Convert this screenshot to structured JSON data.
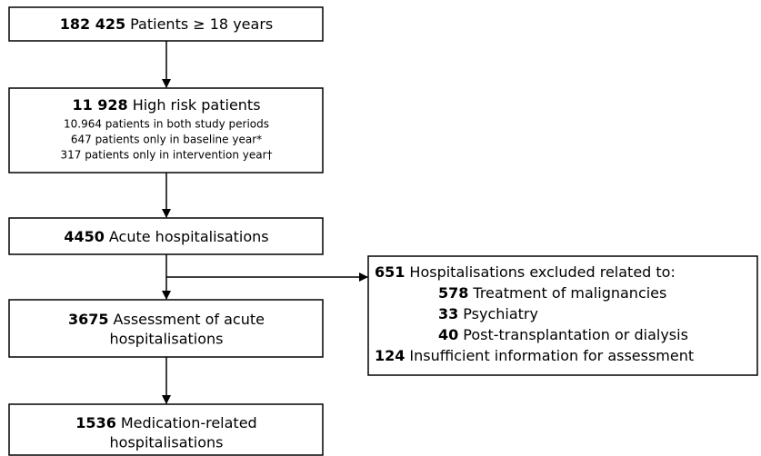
{
  "nodes": [
    {
      "number": "182 425",
      "label": "Patients ≥ 18 years"
    },
    {
      "number": "11 928",
      "label": "High risk patients",
      "details": [
        "10.964 patients in both study periods",
        "647 patients only in baseline year*",
        "317 patients only in intervention year†"
      ]
    },
    {
      "number": "4450",
      "label": "Acute hospitalisations"
    },
    {
      "number": "3675",
      "label_lines": [
        "Assessment of acute",
        "hospitalisations"
      ]
    },
    {
      "number": "1536",
      "label_lines": [
        "Medication-related",
        "hospitalisations"
      ]
    }
  ],
  "exclusions": {
    "number": "651",
    "label": "Hospitalisations excluded related to:",
    "items": [
      {
        "number": "578",
        "label": "Treatment of malignancies"
      },
      {
        "number": "33",
        "label": "Psychiatry"
      },
      {
        "number": "40",
        "label": "Post-transplantation or dialysis"
      },
      {
        "number": "124",
        "label": "Insufficient information for assessment"
      }
    ]
  }
}
